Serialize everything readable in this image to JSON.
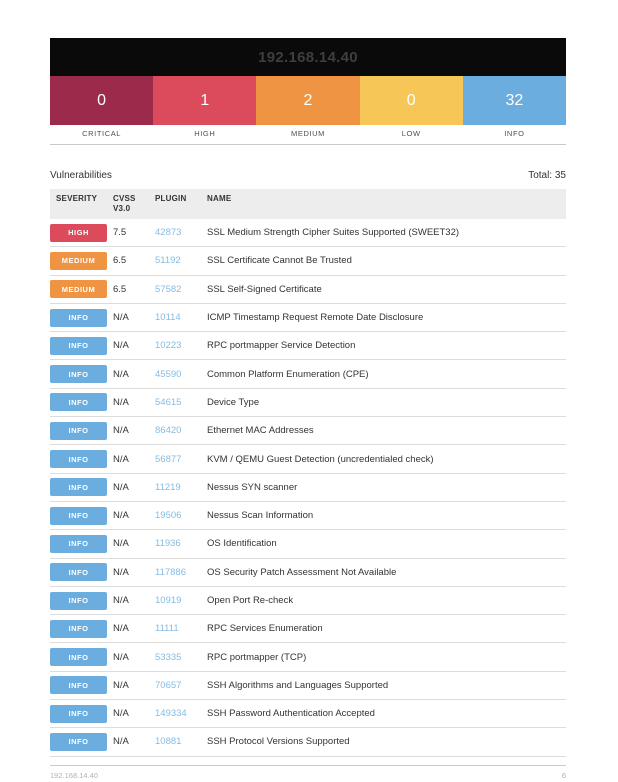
{
  "header": {
    "host": "192.168.14.40"
  },
  "summary": {
    "items": [
      {
        "label": "CRITICAL",
        "count": "0",
        "color": "#9c2b4b"
      },
      {
        "label": "HIGH",
        "count": "1",
        "color": "#dc4b5c"
      },
      {
        "label": "MEDIUM",
        "count": "2",
        "color": "#ef9442"
      },
      {
        "label": "LOW",
        "count": "0",
        "color": "#f6c657"
      },
      {
        "label": "INFO",
        "count": "32",
        "color": "#6badde"
      }
    ]
  },
  "section": {
    "title": "Vulnerabilities",
    "total_label": "Total: 35"
  },
  "table": {
    "columns": {
      "severity": "SEVERITY",
      "cvss_line1": "CVSS",
      "cvss_line2": "V3.0",
      "plugin": "PLUGIN",
      "name": "NAME"
    },
    "severity_colors": {
      "CRITICAL": "#9c2b4b",
      "HIGH": "#dc4b5c",
      "MEDIUM": "#ef9442",
      "LOW": "#f6c657",
      "INFO": "#6badde"
    },
    "rows": [
      {
        "severity": "HIGH",
        "cvss": "7.5",
        "plugin": "42873",
        "name": "SSL Medium Strength Cipher Suites Supported (SWEET32)"
      },
      {
        "severity": "MEDIUM",
        "cvss": "6.5",
        "plugin": "51192",
        "name": "SSL Certificate Cannot Be Trusted"
      },
      {
        "severity": "MEDIUM",
        "cvss": "6.5",
        "plugin": "57582",
        "name": "SSL Self-Signed Certificate"
      },
      {
        "severity": "INFO",
        "cvss": "N/A",
        "plugin": "10114",
        "name": "ICMP Timestamp Request Remote Date Disclosure"
      },
      {
        "severity": "INFO",
        "cvss": "N/A",
        "plugin": "10223",
        "name": "RPC portmapper Service Detection"
      },
      {
        "severity": "INFO",
        "cvss": "N/A",
        "plugin": "45590",
        "name": "Common Platform Enumeration (CPE)"
      },
      {
        "severity": "INFO",
        "cvss": "N/A",
        "plugin": "54615",
        "name": "Device Type"
      },
      {
        "severity": "INFO",
        "cvss": "N/A",
        "plugin": "86420",
        "name": "Ethernet MAC Addresses"
      },
      {
        "severity": "INFO",
        "cvss": "N/A",
        "plugin": "56877",
        "name": "KVM / QEMU Guest Detection (uncredentialed check)"
      },
      {
        "severity": "INFO",
        "cvss": "N/A",
        "plugin": "11219",
        "name": "Nessus SYN scanner"
      },
      {
        "severity": "INFO",
        "cvss": "N/A",
        "plugin": "19506",
        "name": "Nessus Scan Information"
      },
      {
        "severity": "INFO",
        "cvss": "N/A",
        "plugin": "11936",
        "name": "OS Identification"
      },
      {
        "severity": "INFO",
        "cvss": "N/A",
        "plugin": "117886",
        "name": "OS Security Patch Assessment Not Available"
      },
      {
        "severity": "INFO",
        "cvss": "N/A",
        "plugin": "10919",
        "name": "Open Port Re-check"
      },
      {
        "severity": "INFO",
        "cvss": "N/A",
        "plugin": "11111",
        "name": "RPC Services Enumeration"
      },
      {
        "severity": "INFO",
        "cvss": "N/A",
        "plugin": "53335",
        "name": "RPC portmapper (TCP)"
      },
      {
        "severity": "INFO",
        "cvss": "N/A",
        "plugin": "70657",
        "name": "SSH Algorithms and Languages Supported"
      },
      {
        "severity": "INFO",
        "cvss": "N/A",
        "plugin": "149334",
        "name": "SSH Password Authentication Accepted"
      },
      {
        "severity": "INFO",
        "cvss": "N/A",
        "plugin": "10881",
        "name": "SSH Protocol Versions Supported"
      }
    ]
  },
  "footer": {
    "left": "192.168.14.40",
    "page": "6"
  }
}
